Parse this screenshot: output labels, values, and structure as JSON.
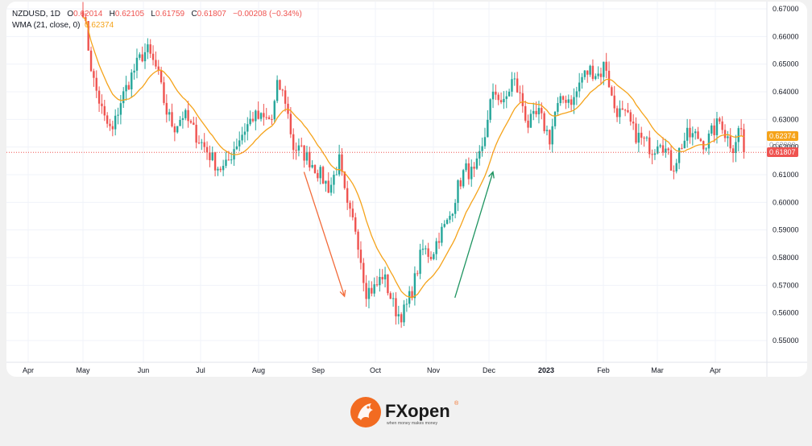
{
  "legend": {
    "symbol": "NZDUSD, 1D",
    "o_label": "O",
    "o_value": "0.62014",
    "h_label": "H",
    "h_value": "0.62105",
    "l_label": "L",
    "l_value": "0.61759",
    "c_label": "C",
    "c_value": "0.61807",
    "change": "−0.00208 (−0.34%)",
    "wma_label": "WMA (21, close, 0)",
    "wma_value": "0.62374"
  },
  "price_tags": {
    "wma": "0.62374",
    "last": "0.61807",
    "hidden": "0.62000"
  },
  "brand": {
    "name": "FXopen",
    "tagline": "when money makes money",
    "registered": "®"
  },
  "colors": {
    "up": "#26a69a",
    "down": "#ef5350",
    "wma": "#f5a31a",
    "arrow_down": "#f26b3a",
    "arrow_up": "#1e9460",
    "brand": "#f26b21"
  },
  "chart_data": {
    "type": "candlestick",
    "title": "NZDUSD, 1D",
    "indicator": "WMA (21, close, 0)",
    "y_ticks": [
      "0.67000",
      "0.66000",
      "0.65000",
      "0.64000",
      "0.63000",
      "0.62000",
      "0.61000",
      "0.60000",
      "0.59000",
      "0.58000",
      "0.57000",
      "0.56000",
      "0.55000"
    ],
    "ylim": [
      0.5445,
      0.6715
    ],
    "x_ticks": [
      "Apr",
      "May",
      "Jun",
      "Jul",
      "Aug",
      "Sep",
      "Oct",
      "Nov",
      "Dec",
      "2023",
      "Feb",
      "Mar",
      "Apr"
    ],
    "grid": true,
    "last_price": 0.61807,
    "wma_last": 0.62374,
    "close_anchors": [
      [
        "May 1",
        0.67
      ],
      [
        "May 6",
        0.645
      ],
      [
        "May 12",
        0.63
      ],
      [
        "May 16",
        0.625
      ],
      [
        "May 20",
        0.636
      ],
      [
        "May 26",
        0.646
      ],
      [
        "May 31",
        0.653
      ],
      [
        "Jun 3",
        0.655
      ],
      [
        "Jun 8",
        0.648
      ],
      [
        "Jun 13",
        0.633
      ],
      [
        "Jun 17",
        0.627
      ],
      [
        "Jun 22",
        0.632
      ],
      [
        "Jun 28",
        0.625
      ],
      [
        "Jul 5",
        0.618
      ],
      [
        "Jul 10",
        0.613
      ],
      [
        "Jul 14",
        0.612
      ],
      [
        "Jul 19",
        0.62
      ],
      [
        "Jul 25",
        0.627
      ],
      [
        "Jul 29",
        0.631
      ],
      [
        "Aug 3",
        0.63
      ],
      [
        "Aug 8",
        0.63
      ],
      [
        "Aug 11",
        0.643
      ],
      [
        "Aug 15",
        0.637
      ],
      [
        "Aug 19",
        0.62
      ],
      [
        "Aug 24",
        0.618
      ],
      [
        "Aug 29",
        0.614
      ],
      [
        "Sep 2",
        0.61
      ],
      [
        "Sep 7",
        0.605
      ],
      [
        "Sep 12",
        0.615
      ],
      [
        "Sep 16",
        0.598
      ],
      [
        "Sep 21",
        0.59
      ],
      [
        "Sep 26",
        0.568
      ],
      [
        "Oct 1",
        0.569
      ],
      [
        "Oct 5",
        0.574
      ],
      [
        "Oct 11",
        0.562
      ],
      [
        "Oct 14",
        0.559
      ],
      [
        "Oct 17",
        0.561
      ],
      [
        "Oct 21",
        0.569
      ],
      [
        "Oct 26",
        0.583
      ],
      [
        "Oct 31",
        0.581
      ],
      [
        "Nov 4",
        0.588
      ],
      [
        "Nov 9",
        0.593
      ],
      [
        "Nov 14",
        0.605
      ],
      [
        "Nov 18",
        0.612
      ],
      [
        "Nov 23",
        0.61
      ],
      [
        "Nov 28",
        0.62
      ],
      [
        "Dec 1",
        0.635
      ],
      [
        "Dec 5",
        0.64
      ],
      [
        "Dec 9",
        0.635
      ],
      [
        "Dec 14",
        0.645
      ],
      [
        "Dec 19",
        0.636
      ],
      [
        "Dec 22",
        0.628
      ],
      [
        "Dec 28",
        0.632
      ],
      [
        "Jan 3",
        0.623
      ],
      [
        "Jan 6",
        0.633
      ],
      [
        "Jan 11",
        0.638
      ],
      [
        "Jan 16",
        0.637
      ],
      [
        "Jan 20",
        0.645
      ],
      [
        "Jan 25",
        0.648
      ],
      [
        "Jan 30",
        0.646
      ],
      [
        "Feb 2",
        0.651
      ],
      [
        "Feb 6",
        0.635
      ],
      [
        "Feb 10",
        0.632
      ],
      [
        "Feb 14",
        0.63
      ],
      [
        "Feb 17",
        0.625
      ],
      [
        "Feb 22",
        0.622
      ],
      [
        "Feb 27",
        0.619
      ],
      [
        "Mar 2",
        0.624
      ],
      [
        "Mar 6",
        0.618
      ],
      [
        "Mar 9",
        0.612
      ],
      [
        "Mar 14",
        0.621
      ],
      [
        "Mar 17",
        0.624
      ],
      [
        "Mar 22",
        0.624
      ],
      [
        "Mar 27",
        0.621
      ],
      [
        "Mar 30",
        0.625
      ],
      [
        "Apr 4",
        0.63
      ],
      [
        "Apr 6",
        0.625
      ],
      [
        "Apr 10",
        0.62
      ],
      [
        "Apr 13",
        0.626
      ],
      [
        "Apr 14",
        0.627
      ],
      [
        "Apr 17",
        0.62
      ]
    ],
    "annotations": [
      {
        "type": "arrow",
        "direction": "down",
        "from": "Aug 15",
        "to": "Sep 30"
      },
      {
        "type": "arrow",
        "direction": "up",
        "from": "Nov 10",
        "to": "Dec 25"
      }
    ]
  }
}
